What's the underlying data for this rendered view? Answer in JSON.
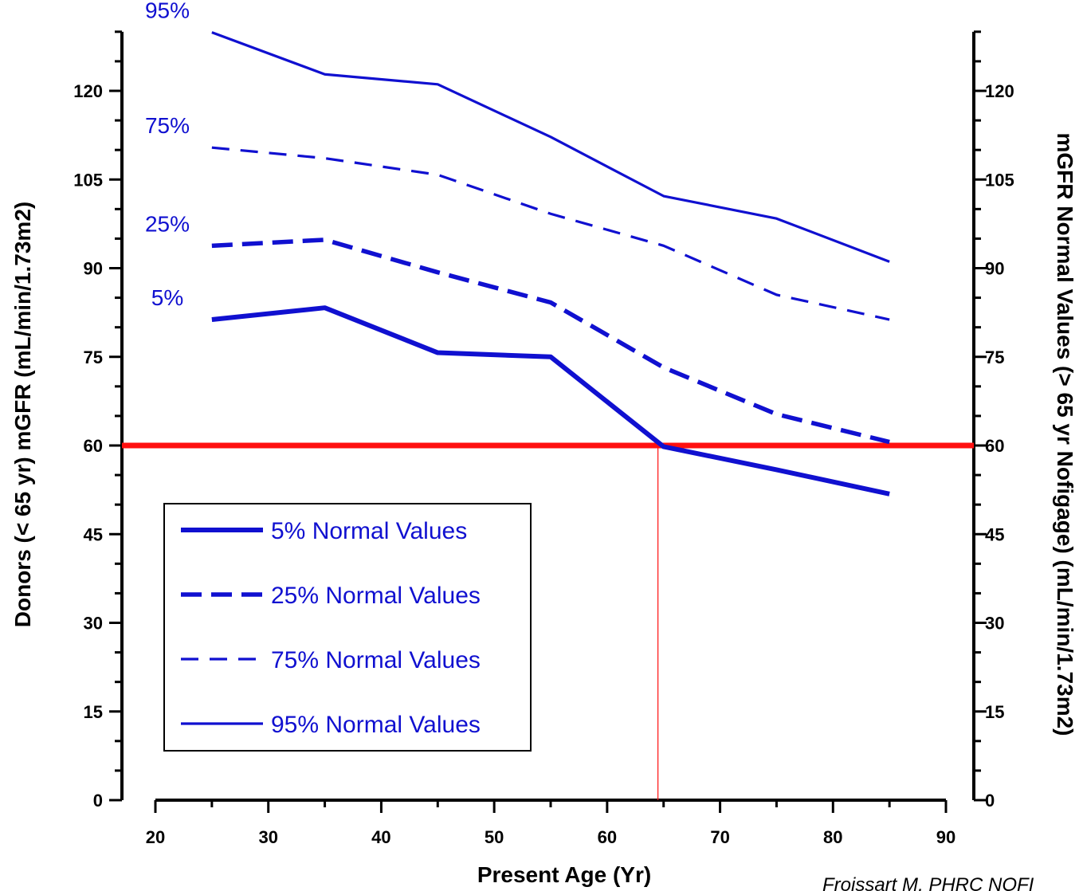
{
  "chart_data": {
    "type": "line",
    "xlabel": "Present Age (Yr)",
    "ylabel": "Donors (< 65 yr) mGFR (mL/min/1.73m2)",
    "y2label": "mGFR Normal Values (> 65 yr Nofigage) (mL/min/1.73m2)",
    "xlim": [
      20,
      90
    ],
    "ylim": [
      0,
      130
    ],
    "x_ticks": [
      20,
      30,
      40,
      50,
      60,
      70,
      80,
      90
    ],
    "y_ticks": [
      0,
      15,
      30,
      45,
      60,
      75,
      90,
      105,
      120
    ],
    "x": [
      25,
      35,
      45,
      55,
      65,
      75,
      85
    ],
    "series": [
      {
        "name": "95% Normal Values",
        "end_label": "95%",
        "values": [
          129.9,
          122.8,
          121.1,
          112.2,
          102.2,
          98.4,
          91.1
        ],
        "color": "#1010d0",
        "style": "solid-thin"
      },
      {
        "name": "75% Normal Values",
        "end_label": "75%",
        "values": [
          110.4,
          108.6,
          105.8,
          99.2,
          93.8,
          85.5,
          81.3
        ],
        "color": "#1010d0",
        "style": "dashed-thin"
      },
      {
        "name": "25% Normal Values",
        "end_label": "25%",
        "values": [
          93.8,
          94.8,
          89.3,
          84.2,
          73.2,
          65.3,
          60.6
        ],
        "color": "#1010d0",
        "style": "dashed-thick"
      },
      {
        "name": "5% Normal Values",
        "end_label": "5%",
        "values": [
          81.3,
          83.3,
          75.7,
          75.0,
          59.8,
          55.9,
          51.8
        ],
        "color": "#1010d0",
        "style": "solid-thick"
      }
    ],
    "reference_lines": {
      "horizontal_y": 60,
      "vertical_x": 64.5,
      "color": "#ff1010"
    },
    "legend": {
      "placement": "bottom-left",
      "entries": [
        "5% Normal Values",
        "25% Normal Values",
        "75% Normal Values",
        "95% Normal Values"
      ]
    },
    "grid": false,
    "credit": "Froissart M, PHRC NOFI"
  }
}
